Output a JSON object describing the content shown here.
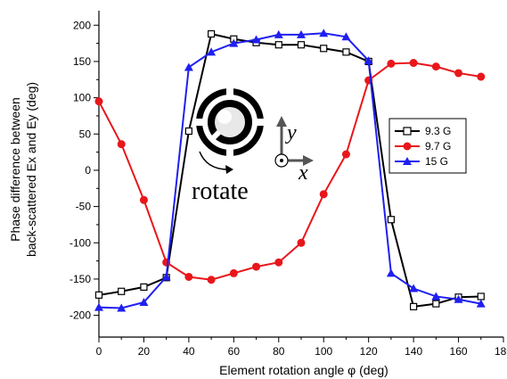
{
  "chart_data": {
    "type": "line",
    "title": "",
    "xlabel": "Element rotation angle φ (deg)",
    "ylabel_lines": [
      "Phase difference between",
      "back-scattered Ex and Ey (deg)"
    ],
    "xlim": [
      0,
      180
    ],
    "ylim": [
      -230,
      220
    ],
    "xticks": [
      0,
      20,
      40,
      60,
      80,
      100,
      120,
      140,
      160,
      180
    ],
    "yticks": [
      -200,
      -150,
      -100,
      -50,
      0,
      50,
      100,
      150,
      200
    ],
    "grid": false,
    "legend_position": "right",
    "series": [
      {
        "name": "9.3 G",
        "color": "#000000",
        "marker": "square-open",
        "x": [
          0,
          10,
          20,
          30,
          40,
          50,
          60,
          70,
          80,
          90,
          100,
          110,
          120,
          130,
          140,
          150,
          160,
          170
        ],
        "y": [
          -172,
          -167,
          -161,
          -148,
          54,
          188,
          181,
          176,
          173,
          173,
          168,
          163,
          150,
          -68,
          -188,
          -184,
          -175,
          -174
        ]
      },
      {
        "name": "9.7 G",
        "color": "#e8161b",
        "marker": "circle-filled",
        "x": [
          0,
          10,
          20,
          30,
          40,
          50,
          60,
          70,
          80,
          90,
          100,
          110,
          120,
          130,
          140,
          150,
          160,
          170
        ],
        "y": [
          95,
          36,
          -41,
          -127,
          -147,
          -151,
          -142,
          -133,
          -127,
          -100,
          -33,
          22,
          124,
          147,
          148,
          143,
          134,
          129
        ]
      },
      {
        "name": "15 G",
        "color": "#1f1ff0",
        "marker": "triangle-filled",
        "x": [
          0,
          10,
          20,
          30,
          40,
          50,
          60,
          70,
          80,
          90,
          100,
          110,
          120,
          130,
          140,
          150,
          160,
          170
        ],
        "y": [
          -189,
          -190,
          -182,
          -147,
          142,
          163,
          175,
          180,
          187,
          187,
          189,
          184,
          151,
          -142,
          -163,
          -174,
          -178,
          -184
        ]
      }
    ],
    "inset": {
      "axis_y_label": "y",
      "axis_x_label": "x",
      "rotate_label": "rotate"
    }
  }
}
